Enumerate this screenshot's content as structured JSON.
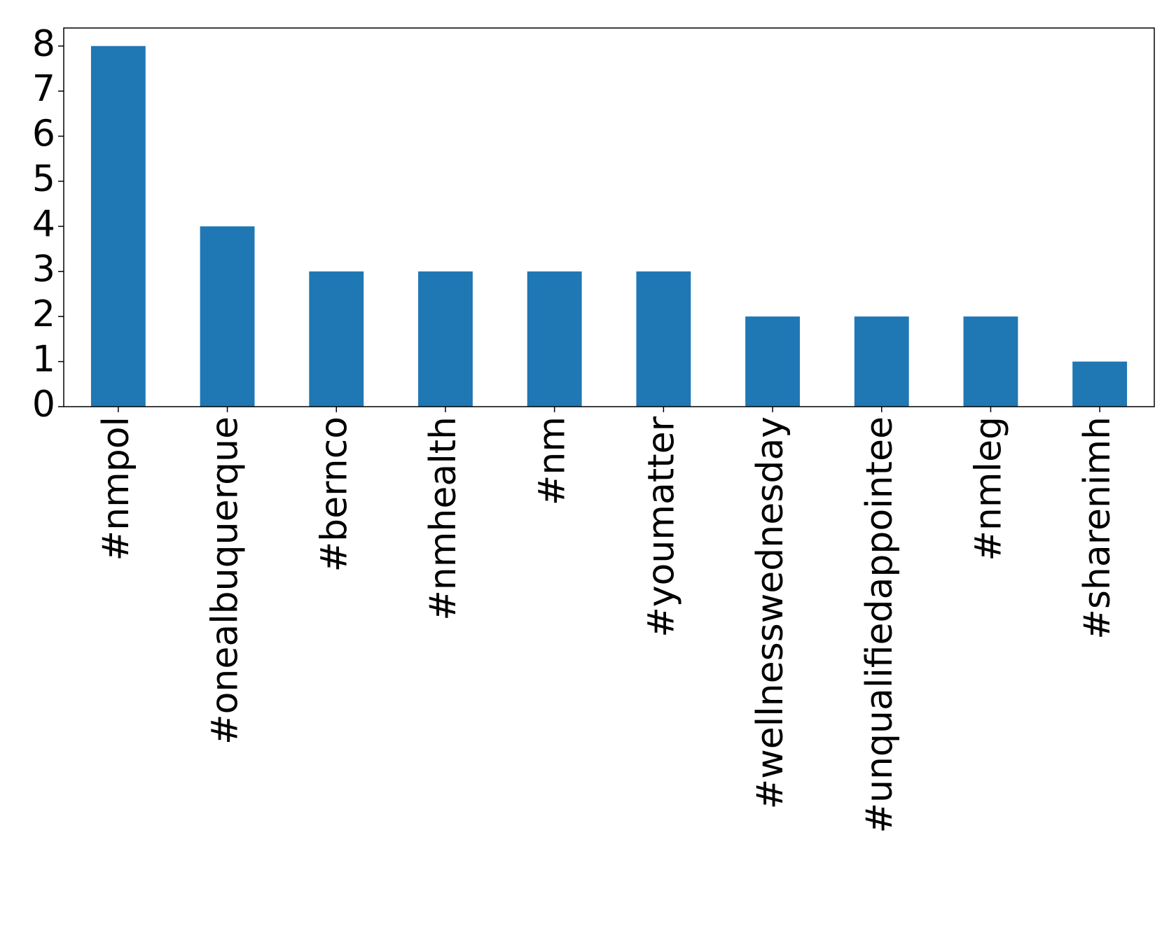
{
  "chart_data": {
    "type": "bar",
    "categories": [
      "#nmpol",
      "#onealbuquerque",
      "#bernco",
      "#nmhealth",
      "#nm",
      "#youmatter",
      "#wellnesswednesday",
      "#unqualifiedappointee",
      "#nmleg",
      "#sharenimh"
    ],
    "values": [
      8,
      4,
      3,
      3,
      3,
      3,
      2,
      2,
      2,
      1
    ],
    "color": "#1f77b4",
    "ylim": [
      0,
      8.4
    ],
    "yticks": [
      0,
      1,
      2,
      3,
      4,
      5,
      6,
      7,
      8
    ],
    "grid": false
  }
}
